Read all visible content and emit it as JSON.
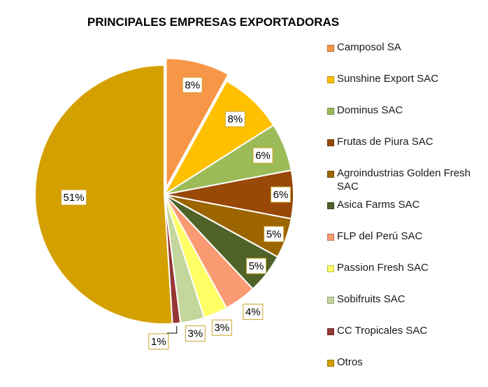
{
  "chart_data": {
    "type": "pie",
    "title": "PRINCIPALES EMPRESAS EXPORTADORAS",
    "legend_position": "right",
    "slices": [
      {
        "name": "Camposol SA",
        "value": 8,
        "label": "8%",
        "color": "#F79646"
      },
      {
        "name": "Sunshine Export SAC",
        "value": 8,
        "label": "8%",
        "color": "#FFC000"
      },
      {
        "name": "Dominus SAC",
        "value": 6,
        "label": "6%",
        "color": "#9BBB59"
      },
      {
        "name": "Frutas de Piura SAC",
        "value": 6,
        "label": "6%",
        "color": "#984807"
      },
      {
        "name": "Agroindustrias Golden Fresh SAC",
        "value": 5,
        "label": "5%",
        "color": "#9C6500"
      },
      {
        "name": "Asica Farms SAC",
        "value": 5,
        "label": "5%",
        "color": "#4F6228"
      },
      {
        "name": "FLP del Perú SAC",
        "value": 4,
        "label": "4%",
        "color": "#FA9A72"
      },
      {
        "name": "Passion Fresh SAC",
        "value": 3,
        "label": "3%",
        "color": "#FFFF66"
      },
      {
        "name": "Sobifruits SAC",
        "value": 3,
        "label": "3%",
        "color": "#C3D69B"
      },
      {
        "name": "CC Tropicales SAC",
        "value": 1,
        "label": "1%",
        "color": "#953735"
      },
      {
        "name": "Otros",
        "value": 51,
        "label": "51%",
        "color": "#D4A000"
      }
    ]
  }
}
